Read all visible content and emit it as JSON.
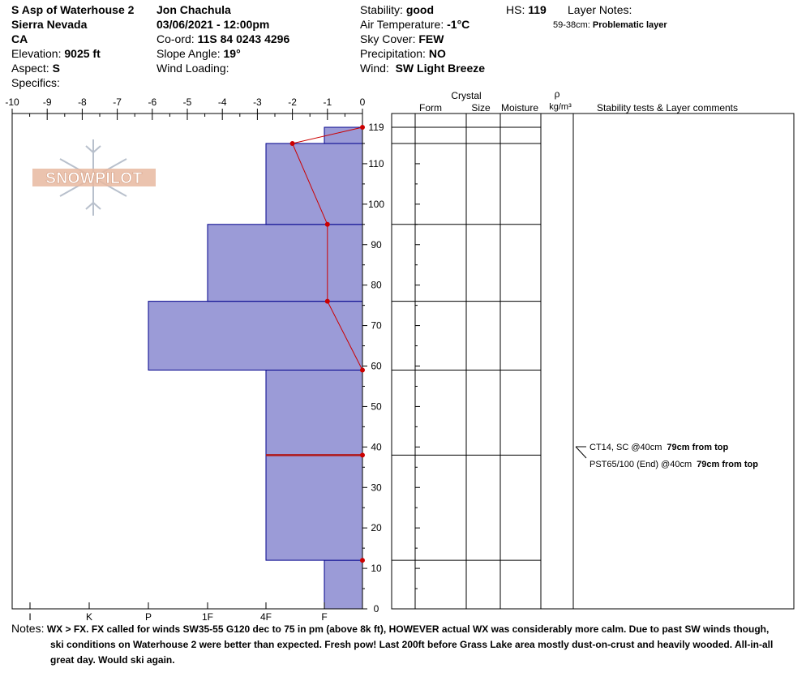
{
  "header": {
    "location": "S Asp of Waterhouse 2",
    "range": "Sierra Nevada",
    "state": "CA",
    "elevation_label": "Elevation:",
    "elevation": "9025 ft",
    "aspect_label": "Aspect:",
    "aspect": "S",
    "specifics_label": "Specifics:",
    "observer": "Jon Chachula",
    "datetime": "03/06/2021 - 12:00pm",
    "coord_label": "Co-ord:",
    "coord": "11S 84 0243 4296",
    "slope_label": "Slope Angle:",
    "slope": "19°",
    "wind_loading_label": "Wind Loading:",
    "stability_label": "Stability:",
    "stability": "good",
    "air_temp_label": "Air Temperature:",
    "air_temp": "-1°C",
    "sky_label": "Sky Cover:",
    "sky": "FEW",
    "precip_label": "Precipitation:",
    "precip": "NO",
    "wind_label": "Wind:",
    "wind": "SW  Light Breeze",
    "hs_label": "HS:",
    "hs": "119",
    "layer_notes_label": "Layer Notes:",
    "layer_note_range": "59-38cm:",
    "layer_note_text": "Problematic layer"
  },
  "logo": {
    "text": "SNOWPILOT"
  },
  "table_headers": {
    "crystal": "Crystal",
    "form": "Form",
    "size": "Size",
    "moisture": "Moisture",
    "rho": "ρ",
    "density_unit": "kg/m³",
    "stability_tests": "Stability tests & Layer comments"
  },
  "tests": [
    {
      "label": "CT14, SC @40cm",
      "bold": "79cm from top"
    },
    {
      "label": "PST65/100 (End) @40cm",
      "bold": "79cm from top"
    }
  ],
  "notes": {
    "label": "Notes:",
    "line1": "WX > FX.  FX called for winds SW35-55 G120 dec to 75 in pm (above 8k ft), HOWEVER actual WX was considerably more calm.  Due to past SW winds though,",
    "line2": "ski conditions on Waterhouse 2 were better than expected.  Fresh pow!  Last 200ft before Grass Lake area mostly dust-on-crust and heavily wooded.  All-in-all",
    "line3": "great day.  Would ski again."
  },
  "chart_data": {
    "type": "snow-profile",
    "x_top_ticks": [
      "-10",
      "-9",
      "-8",
      "-7",
      "-6",
      "-5",
      "-4",
      "-3",
      "-2",
      "-1",
      "0"
    ],
    "x_top_range": [
      -10,
      0
    ],
    "hardness_ticks": [
      "I",
      "K",
      "P",
      "1F",
      "4F",
      "F"
    ],
    "y_range": [
      0,
      119
    ],
    "y_ticks": [
      0,
      10,
      20,
      30,
      40,
      50,
      60,
      70,
      80,
      90,
      100,
      110,
      119
    ],
    "layers": [
      {
        "bottom": 0,
        "top": 12,
        "hardness": "F"
      },
      {
        "bottom": 12,
        "top": 38,
        "hardness": "4F"
      },
      {
        "bottom": 38,
        "top": 59,
        "hardness": "4F"
      },
      {
        "bottom": 59,
        "top": 76,
        "hardness": "P"
      },
      {
        "bottom": 76,
        "top": 95,
        "hardness": "1F"
      },
      {
        "bottom": 95,
        "top": 115,
        "hardness": "4F"
      },
      {
        "bottom": 115,
        "top": 119,
        "hardness": "F"
      }
    ],
    "problem_layer_depth": 38,
    "temperature_profile": [
      {
        "height": 119,
        "temp": 0
      },
      {
        "height": 115,
        "temp": -2
      },
      {
        "height": 95,
        "temp": -1
      },
      {
        "height": 76,
        "temp": -1
      },
      {
        "height": 59,
        "temp": 0
      }
    ],
    "extra_markers": [
      {
        "height": 38,
        "temp": 0
      },
      {
        "height": 12,
        "temp": 0
      }
    ],
    "test_height": 40,
    "colors": {
      "fill": "#9b9bd7",
      "border": "#00008b",
      "temp": "#cc0000",
      "problem": "#b01818"
    }
  }
}
